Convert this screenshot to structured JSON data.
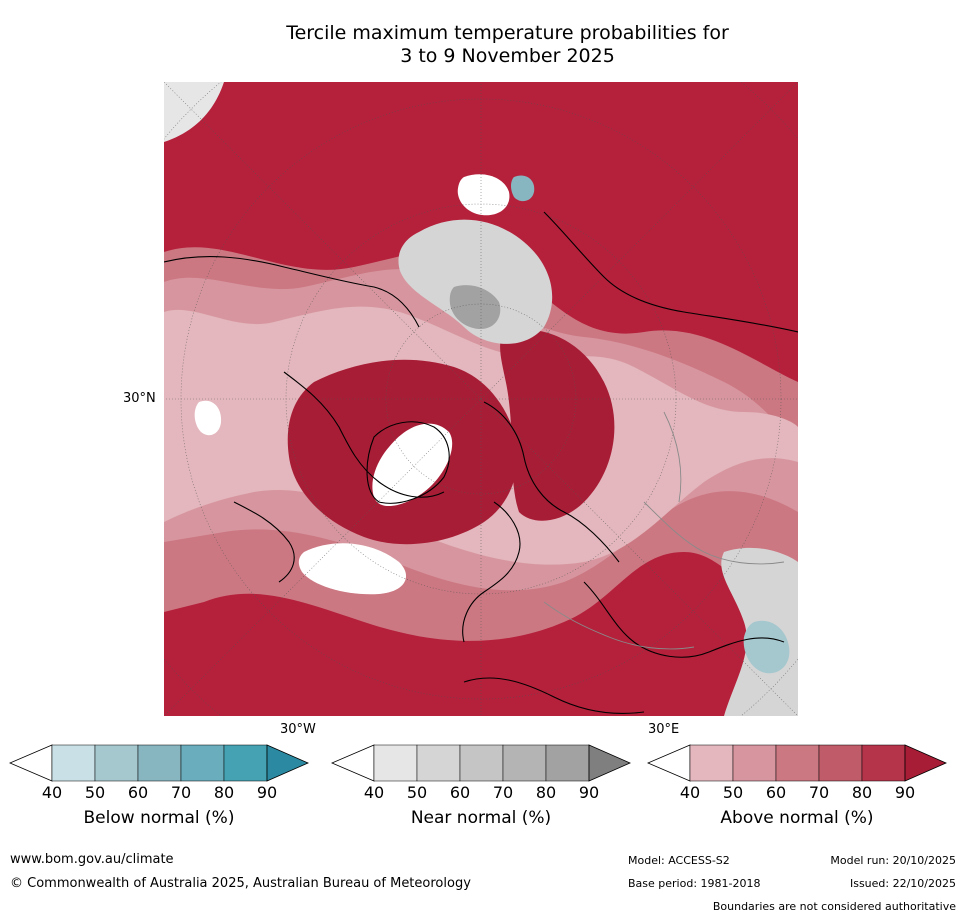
{
  "title": {
    "line1": "Tercile maximum temperature probabilities for",
    "line2": "3 to 9 November 2025"
  },
  "map": {
    "projection": "north-polar-stereographic",
    "axis_labels": {
      "lat": "30°N",
      "lon_west": "30°W",
      "lon_east": "30°E"
    }
  },
  "colors": {
    "below": [
      "#ffffff",
      "#c8e0e6",
      "#a5c7ce",
      "#88b6c0",
      "#6aaebd",
      "#44a2b3",
      "#2b8aa1"
    ],
    "near": [
      "#ffffff",
      "#e6e6e6",
      "#d5d5d5",
      "#c5c5c5",
      "#b4b4b4",
      "#a2a2a2",
      "#7f7f7f"
    ],
    "above": [
      "#ffffff",
      "#e3b7bd",
      "#d7969f",
      "#cc7882",
      "#c05b69",
      "#b5344a",
      "#a81d36"
    ]
  },
  "colorbars": {
    "ticks": [
      "40",
      "50",
      "60",
      "70",
      "80",
      "90"
    ],
    "below_label": "Below normal (%)",
    "near_label": "Near normal (%)",
    "above_label": "Above normal (%)"
  },
  "footer": {
    "website": "www.bom.gov.au/climate",
    "copyright": "© Commonwealth of Australia 2025, Australian Bureau of Meteorology",
    "model": "Model: ACCESS-S2",
    "base_period": "Base period: 1981-2018",
    "model_run": "Model run: 20/10/2025",
    "issued": "Issued: 22/10/2025",
    "disclaimer": "Boundaries are not considered authoritative"
  }
}
